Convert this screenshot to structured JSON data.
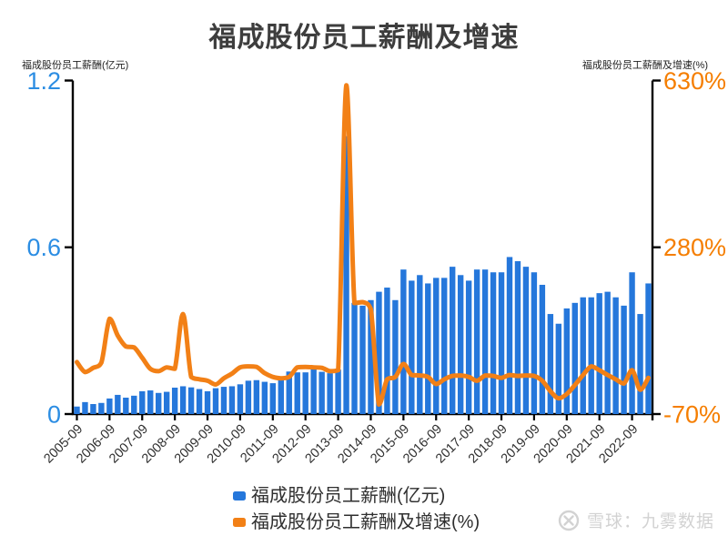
{
  "title": "福成股份员工薪酬及增速",
  "axes": {
    "left": {
      "name": "福成股份员工薪酬(亿元)",
      "color": "#2B8DE3",
      "ticks": [
        {
          "value": 0,
          "label": "0"
        },
        {
          "value": 0.6,
          "label": "0.6"
        },
        {
          "value": 1.2,
          "label": "1.2"
        }
      ]
    },
    "right": {
      "name": "福成股份员工薪酬及增速(%)",
      "color": "#F57E00",
      "ticks": [
        {
          "value": -70,
          "label": "-70%"
        },
        {
          "value": 280,
          "label": "280%"
        },
        {
          "value": 630,
          "label": "630%"
        }
      ]
    }
  },
  "legend": {
    "items": [
      {
        "label": "福成股份员工薪酬(亿元)",
        "color": "#2577DB"
      },
      {
        "label": "福成股份员工薪酬及增速(%)",
        "color": "#F28016"
      }
    ]
  },
  "watermark": {
    "text": "雪球：九雾数据",
    "logo": "xueqiu-circle-x-icon"
  },
  "chart_data": {
    "type": "bar+line",
    "title": "福成股份员工薪酬及增速",
    "grid": false,
    "legend_position": "bottom",
    "x_label_every": 4,
    "x_label_rotation": -45,
    "left_ylim": [
      0,
      1.2
    ],
    "right_ylim": [
      -70,
      630
    ],
    "categories": [
      "2005-09",
      "2005-12",
      "2006-03",
      "2006-06",
      "2006-09",
      "2006-12",
      "2007-03",
      "2007-06",
      "2007-09",
      "2007-12",
      "2008-03",
      "2008-06",
      "2008-09",
      "2008-12",
      "2009-03",
      "2009-06",
      "2009-09",
      "2009-12",
      "2010-03",
      "2010-06",
      "2010-09",
      "2010-12",
      "2011-03",
      "2011-06",
      "2011-09",
      "2011-12",
      "2012-03",
      "2012-06",
      "2012-09",
      "2012-12",
      "2013-03",
      "2013-06",
      "2013-09",
      "2013-12",
      "2014-03",
      "2014-06",
      "2014-09",
      "2014-12",
      "2015-03",
      "2015-06",
      "2015-09",
      "2015-12",
      "2016-03",
      "2016-06",
      "2016-09",
      "2016-12",
      "2017-03",
      "2017-06",
      "2017-09",
      "2017-12",
      "2018-03",
      "2018-06",
      "2018-09",
      "2018-12",
      "2019-03",
      "2019-06",
      "2019-09",
      "2019-12",
      "2020-03",
      "2020-06",
      "2020-09",
      "2020-12",
      "2021-03",
      "2021-06",
      "2021-09",
      "2021-12",
      "2022-03",
      "2022-06",
      "2022-09",
      "2022-12",
      "2023-03"
    ],
    "series": [
      {
        "name": "福成股份员工薪酬(亿元)",
        "type": "bar",
        "yaxis": "left",
        "unit": "亿元",
        "color": "#2577DB",
        "values": [
          0.027,
          0.043,
          0.036,
          0.04,
          0.056,
          0.069,
          0.059,
          0.066,
          0.082,
          0.085,
          0.076,
          0.08,
          0.095,
          0.1,
          0.096,
          0.09,
          0.082,
          0.093,
          0.098,
          0.1,
          0.107,
          0.12,
          0.122,
          0.116,
          0.111,
          0.125,
          0.153,
          0.15,
          0.15,
          0.164,
          0.152,
          0.147,
          0.16,
          1.0,
          0.4,
          0.39,
          0.41,
          0.44,
          0.455,
          0.41,
          0.52,
          0.48,
          0.5,
          0.47,
          0.49,
          0.49,
          0.53,
          0.5,
          0.48,
          0.52,
          0.52,
          0.51,
          0.51,
          0.565,
          0.55,
          0.53,
          0.51,
          0.465,
          0.36,
          0.325,
          0.38,
          0.4,
          0.42,
          0.42,
          0.435,
          0.44,
          0.42,
          0.39,
          0.51,
          0.36,
          0.47
        ]
      },
      {
        "name": "福成股份员工薪酬及增速(%)",
        "type": "line",
        "yaxis": "right",
        "unit": "%",
        "color": "#F28016",
        "values": [
          39,
          18,
          27,
          38,
          130,
          95,
          72,
          70,
          48,
          25,
          20,
          28,
          25,
          140,
          8,
          3,
          0,
          -8,
          5,
          15,
          28,
          30,
          29,
          16,
          8,
          5,
          8,
          28,
          29,
          28,
          27,
          20,
          22,
          620,
          163,
          165,
          150,
          -50,
          3,
          8,
          35,
          12,
          11,
          8,
          -7,
          3,
          10,
          11,
          8,
          0,
          11,
          10,
          6,
          12,
          10,
          11,
          10,
          0,
          -22,
          -37,
          -28,
          -9,
          12,
          30,
          22,
          12,
          3,
          -6,
          22,
          -19,
          6
        ]
      }
    ]
  }
}
